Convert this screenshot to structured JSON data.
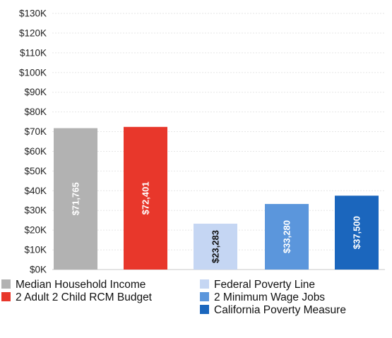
{
  "chart_data": {
    "type": "bar",
    "title": "",
    "xlabel": "",
    "ylabel": "",
    "ylim": [
      0,
      130000
    ],
    "yticks": [
      0,
      10000,
      20000,
      30000,
      40000,
      50000,
      60000,
      70000,
      80000,
      90000,
      100000,
      110000,
      120000,
      130000
    ],
    "ytick_labels": [
      "$0K",
      "$10K",
      "$20K",
      "$30K",
      "$40K",
      "$50K",
      "$60K",
      "$70K",
      "$80K",
      "$90K",
      "$100K",
      "$110K",
      "$120K",
      "$130K"
    ],
    "grid": true,
    "legend_placement": "bottom",
    "categories": [
      "Median Household Income",
      "2 Adult 2 Child RCM Budget",
      "Federal Poverty Line",
      "2 Minimum Wage Jobs",
      "California Poverty Measure"
    ],
    "values": [
      71765,
      72401,
      23283,
      33280,
      37500
    ],
    "value_labels": [
      "$71,765",
      "$72,401",
      "$23,283",
      "$33,280",
      "$37,500"
    ],
    "colors": [
      "#b2b2b2",
      "#e8372b",
      "#c5d6f3",
      "#5b96dc",
      "#1b66bd"
    ],
    "label_colors": [
      "#ffffff",
      "#ffffff",
      "#111111",
      "#ffffff",
      "#ffffff"
    ],
    "legend": [
      {
        "label": "Median Household Income",
        "color": "#b2b2b2"
      },
      {
        "label": "2 Adult 2 Child RCM Budget",
        "color": "#e8372b"
      },
      {
        "label": "Federal Poverty Line",
        "color": "#c5d6f3"
      },
      {
        "label": "2 Minimum Wage Jobs",
        "color": "#5b96dc"
      },
      {
        "label": "California Poverty Measure",
        "color": "#1b66bd"
      }
    ]
  }
}
